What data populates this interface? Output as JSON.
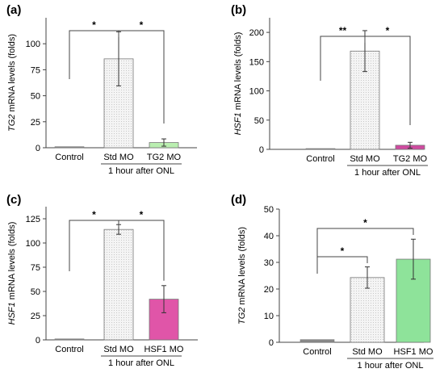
{
  "panels": [
    {
      "letter": "(a)",
      "gene": "TG2"
    },
    {
      "letter": "(b)",
      "gene": "HSF1"
    },
    {
      "letter": "(c)",
      "gene": "HSF1"
    },
    {
      "letter": "(d)",
      "gene": "TG2"
    }
  ],
  "ylabel_suffix_a": " mRNA levels  (folds)",
  "ylabel_suffix": " mRNA levels (folds)",
  "group_label": "1 hour after ONL",
  "colors": {
    "control": "#888888",
    "std": "#f2f2f2",
    "tg2mo": "#b9eeb0",
    "hsf1mo_c": "#e055a8",
    "hsf1mo_d": "#8ee39a"
  },
  "chart_data": [
    {
      "type": "bar",
      "panel": "(a)",
      "categories": [
        "Control",
        "Std MO",
        "TG2 MO"
      ],
      "values": [
        1,
        85.5,
        5
      ],
      "errors": [
        0,
        26,
        3.5
      ],
      "ylabel": "TG2 mRNA levels  (folds)",
      "xlabel": "1 hour after ONL",
      "ylim": [
        0,
        125
      ],
      "yticks": [
        0,
        25,
        50,
        75,
        100
      ],
      "significance": [
        {
          "pair": [
            "Control",
            "Std MO"
          ],
          "label": "*"
        },
        {
          "pair": [
            "Std MO",
            "TG2 MO"
          ],
          "label": "*"
        }
      ]
    },
    {
      "type": "bar",
      "panel": "(b)",
      "categories": [
        "Control",
        "Std MO",
        "TG2 MO"
      ],
      "values": [
        1,
        168,
        7
      ],
      "errors": [
        0,
        35,
        5
      ],
      "ylabel": "HSF1 mRNA levels (folds)",
      "xlabel": "1 hour after ONL",
      "ylim": [
        0,
        225
      ],
      "yticks": [
        0,
        50,
        100,
        150,
        200
      ],
      "significance": [
        {
          "pair": [
            "Control",
            "Std MO"
          ],
          "label": "**"
        },
        {
          "pair": [
            "Std MO",
            "TG2 MO"
          ],
          "label": "*"
        }
      ]
    },
    {
      "type": "bar",
      "panel": "(c)",
      "categories": [
        "Control",
        "Std MO",
        "HSF1 MO"
      ],
      "values": [
        1,
        114,
        42
      ],
      "errors": [
        0,
        5,
        14
      ],
      "ylabel": "HSF1 mRNA levels (folds)",
      "xlabel": "1 hour after ONL",
      "ylim": [
        0,
        137.5
      ],
      "yticks": [
        0,
        25,
        50,
        75,
        100,
        125
      ],
      "significance": [
        {
          "pair": [
            "Control",
            "Std MO"
          ],
          "label": "*"
        },
        {
          "pair": [
            "Std MO",
            "HSF1 MO"
          ],
          "label": "*"
        }
      ]
    },
    {
      "type": "bar",
      "panel": "(d)",
      "categories": [
        "Control",
        "Std MO",
        "HSF1 MO"
      ],
      "values": [
        1,
        24.3,
        31.2
      ],
      "errors": [
        0,
        4,
        7.5
      ],
      "ylabel": "TG2 mRNA levels (folds)",
      "xlabel": "1 hour after ONL",
      "ylim": [
        0,
        50
      ],
      "yticks": [
        0,
        10,
        20,
        30,
        40,
        50
      ],
      "significance": [
        {
          "pair": [
            "Control",
            "Std MO"
          ],
          "label": "*"
        },
        {
          "pair": [
            "Control",
            "HSF1 MO"
          ],
          "label": "*"
        }
      ]
    }
  ]
}
